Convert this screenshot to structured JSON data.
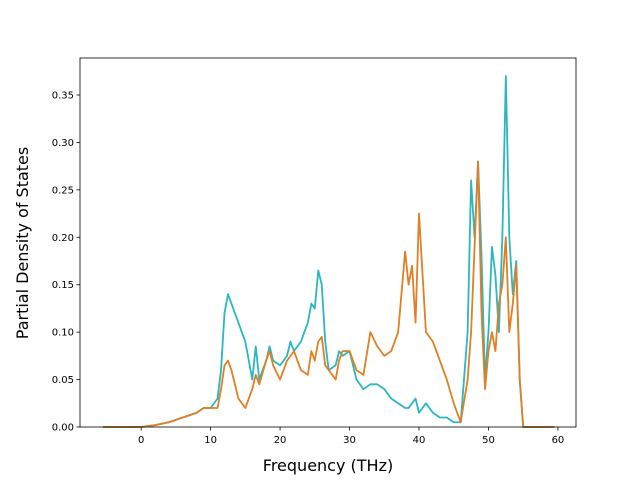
{
  "chart_data": {
    "type": "line",
    "xlabel": "Frequency (THz)",
    "ylabel": "Partial Density of States",
    "x": [
      -5.5,
      0,
      2,
      4,
      6,
      8,
      9,
      10,
      11,
      11.5,
      12,
      12.5,
      13,
      14,
      15,
      16,
      16.5,
      17,
      18,
      18.5,
      19,
      20,
      21,
      21.5,
      22,
      23,
      24,
      24.5,
      25,
      25.5,
      26,
      26.5,
      27,
      28,
      28.5,
      29,
      30,
      31,
      32,
      33,
      34,
      35,
      36,
      37,
      38,
      38.5,
      39,
      39.5,
      40,
      41,
      42,
      43,
      44,
      45,
      46,
      47,
      47.5,
      48,
      48.5,
      49,
      49.5,
      50,
      50.5,
      51,
      51.5,
      52,
      52.5,
      53,
      53.5,
      54,
      54.5,
      55,
      59.5
    ],
    "series": [
      {
        "color": "#2ab7c0",
        "values": [
          0,
          0,
          0.002,
          0.005,
          0.01,
          0.015,
          0.02,
          0.02,
          0.03,
          0.06,
          0.12,
          0.14,
          0.13,
          0.11,
          0.09,
          0.05,
          0.085,
          0.05,
          0.07,
          0.085,
          0.07,
          0.065,
          0.075,
          0.09,
          0.08,
          0.09,
          0.11,
          0.13,
          0.125,
          0.165,
          0.15,
          0.09,
          0.06,
          0.065,
          0.08,
          0.075,
          0.08,
          0.05,
          0.04,
          0.045,
          0.045,
          0.04,
          0.03,
          0.025,
          0.02,
          0.02,
          0.025,
          0.03,
          0.015,
          0.025,
          0.015,
          0.01,
          0.01,
          0.005,
          0.005,
          0.1,
          0.26,
          0.2,
          0.28,
          0.18,
          0.05,
          0.1,
          0.19,
          0.16,
          0.1,
          0.2,
          0.37,
          0.2,
          0.14,
          0.175,
          0.05,
          0,
          0
        ]
      },
      {
        "color": "#e07f24",
        "values": [
          0,
          0,
          0.002,
          0.005,
          0.01,
          0.015,
          0.02,
          0.02,
          0.02,
          0.04,
          0.065,
          0.07,
          0.06,
          0.03,
          0.02,
          0.04,
          0.055,
          0.045,
          0.07,
          0.08,
          0.065,
          0.05,
          0.07,
          0.075,
          0.08,
          0.06,
          0.055,
          0.08,
          0.07,
          0.09,
          0.095,
          0.065,
          0.06,
          0.05,
          0.07,
          0.08,
          0.08,
          0.06,
          0.055,
          0.1,
          0.085,
          0.075,
          0.08,
          0.1,
          0.185,
          0.15,
          0.17,
          0.11,
          0.225,
          0.1,
          0.09,
          0.07,
          0.05,
          0.025,
          0.005,
          0.05,
          0.1,
          0.19,
          0.28,
          0.12,
          0.04,
          0.08,
          0.1,
          0.08,
          0.13,
          0.15,
          0.2,
          0.1,
          0.13,
          0.17,
          0.05,
          0,
          0
        ]
      }
    ],
    "xlim": [
      -8.8,
      62.6
    ],
    "ylim": [
      0,
      0.389
    ],
    "xticks": [
      0,
      10,
      20,
      30,
      40,
      50,
      60
    ],
    "yticks": [
      {
        "value": 0,
        "label": "0.00"
      },
      {
        "value": 0.05,
        "label": "0.05"
      },
      {
        "value": 0.1,
        "label": "0.10"
      },
      {
        "value": 0.15,
        "label": "0.15"
      },
      {
        "value": 0.2,
        "label": "0.20"
      },
      {
        "value": 0.25,
        "label": "0.25"
      },
      {
        "value": 0.3,
        "label": "0.30"
      },
      {
        "value": 0.35,
        "label": "0.35"
      }
    ]
  }
}
